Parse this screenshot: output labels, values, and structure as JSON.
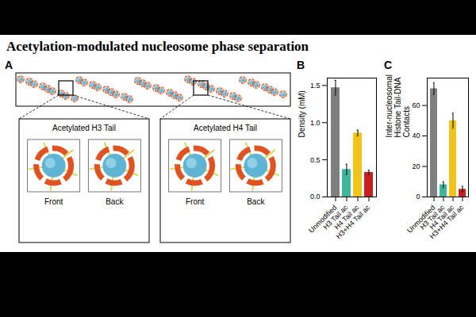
{
  "title": "Acetylation-modulated nucleosome phase separation",
  "panel_a": {
    "panel_label": "A",
    "insets": [
      {
        "title": "Acetylated H3 Tail",
        "views": [
          "Front",
          "Back"
        ]
      },
      {
        "title": "Acetylated H4 Tail",
        "views": [
          "Front",
          "Back"
        ]
      }
    ]
  },
  "chart_data": [
    {
      "type": "bar",
      "panel_label": "B",
      "y_label": "Density (mM)",
      "categories": [
        "Unmodified",
        "H3 Tail ac",
        "H4 Tail ac",
        "H3+H4 Tail ac"
      ],
      "values": [
        1.47,
        0.37,
        0.86,
        0.33
      ],
      "errors": [
        0.1,
        0.07,
        0.04,
        0.03
      ],
      "colors": [
        "#7f7f7f",
        "#3fb59c",
        "#f0c419",
        "#c8201e"
      ],
      "ylim": [
        0,
        1.6
      ],
      "yticks": [
        {
          "value": 0,
          "label": "0.0"
        },
        {
          "value": 0.5,
          "label": "0.5"
        },
        {
          "value": 1,
          "label": "1.0"
        },
        {
          "value": 1.5,
          "label": "1.5"
        }
      ]
    },
    {
      "type": "bar",
      "panel_label": "C",
      "y_label": "Inter-nucleosomal Histone Tail-DNA Contacts",
      "categories": [
        "Unmodified",
        "H3 Tail ac",
        "H4 Tail ac",
        "H3+H4 Tail ac"
      ],
      "values": [
        71,
        8,
        50,
        5
      ],
      "errors": [
        4,
        2,
        5,
        2
      ],
      "colors": [
        "#7f7f7f",
        "#3fb59c",
        "#f0c419",
        "#c8201e"
      ],
      "ylim": [
        0,
        78
      ],
      "yticks": [
        0,
        20,
        40,
        60
      ]
    }
  ]
}
